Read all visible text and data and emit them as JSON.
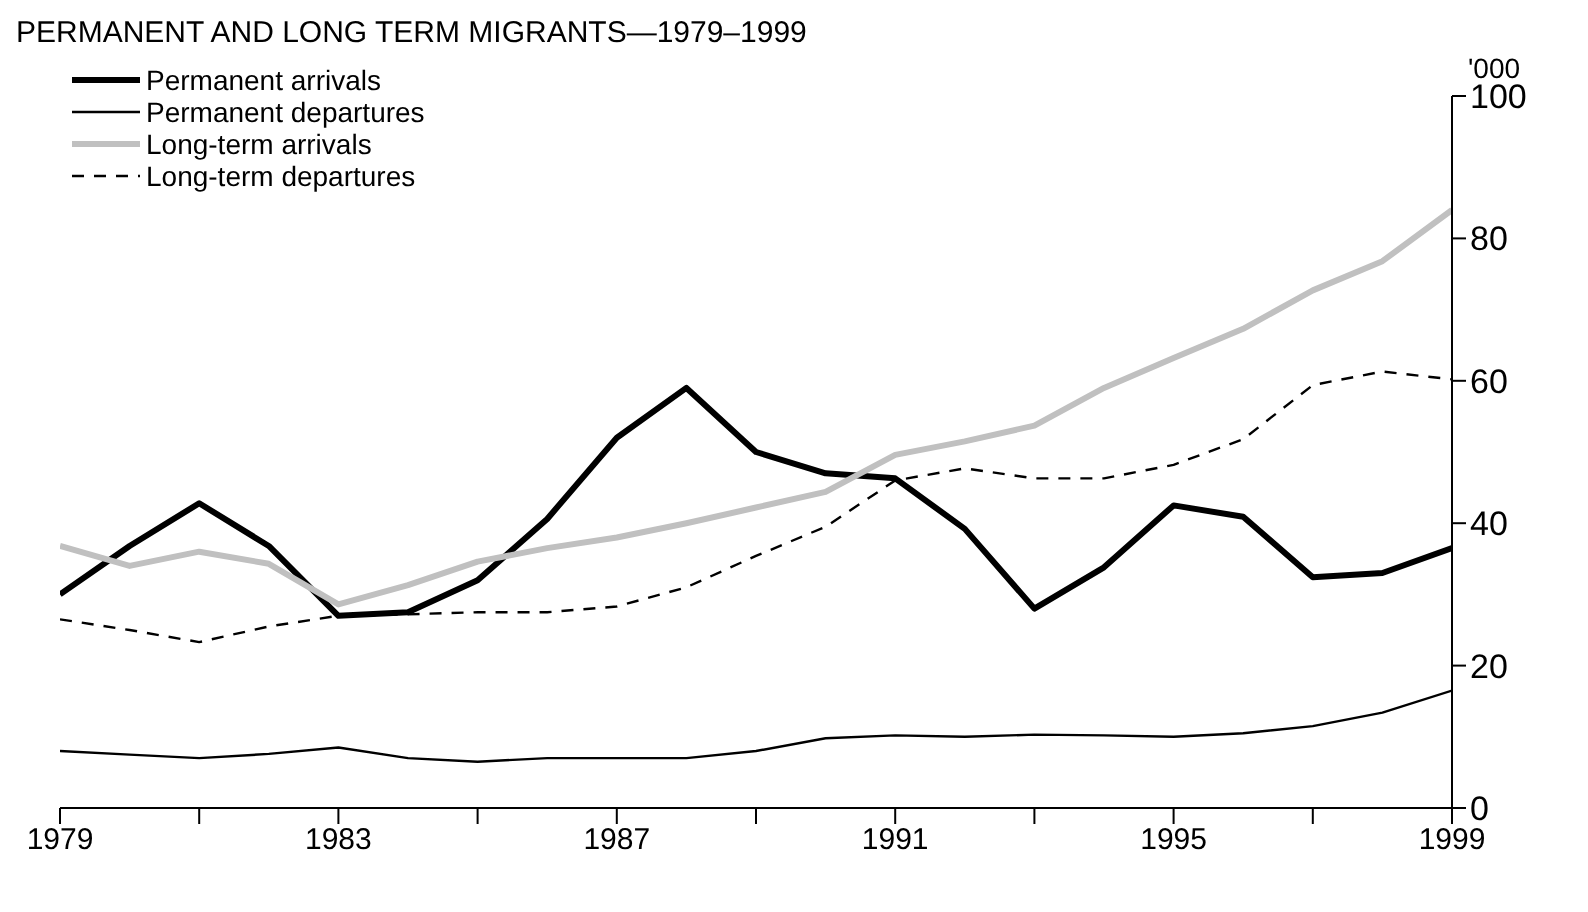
{
  "chart_data": {
    "type": "line",
    "title": "PERMANENT AND LONG TERM MIGRANTS—1979–1999",
    "ylabel": "'000",
    "x": [
      1979,
      1980,
      1981,
      1982,
      1983,
      1984,
      1985,
      1986,
      1987,
      1988,
      1989,
      1990,
      1991,
      1992,
      1993,
      1994,
      1995,
      1996,
      1997,
      1998,
      1999
    ],
    "series": [
      {
        "name": "Permanent arrivals",
        "color": "#000000",
        "line_style": "solid",
        "values": [
          30,
          36.8,
          42.8,
          36.8,
          27,
          27.5,
          32,
          40.6,
          52,
          59,
          50,
          47,
          46.3,
          39.2,
          28,
          33.8,
          42.5,
          40.9,
          32.4,
          33,
          36.5
        ]
      },
      {
        "name": "Permanent departures",
        "color": "#000000",
        "line_style": "solid",
        "values": [
          8,
          7.5,
          7,
          7.6,
          8.5,
          7,
          6.5,
          7,
          7,
          7,
          8,
          9.8,
          10.2,
          10,
          10.3,
          10.2,
          10,
          10.5,
          11.5,
          13.4,
          16.5
        ]
      },
      {
        "name": "Long-term arrivals",
        "color": "#c0c0c0",
        "line_style": "solid",
        "values": [
          36.8,
          34,
          36,
          34.3,
          28.6,
          31.3,
          34.6,
          36.5,
          38,
          40,
          42.2,
          44.4,
          49.6,
          51.5,
          53.7,
          59,
          63.2,
          67.3,
          72.7,
          76.8,
          84
        ]
      },
      {
        "name": "Long-term departures",
        "color": "#000000",
        "line_style": "dashed",
        "values": [
          26.5,
          25,
          23.3,
          25.5,
          27,
          27.2,
          27.5,
          27.5,
          28.3,
          31,
          35.4,
          39.5,
          46,
          47.7,
          46.3,
          46.3,
          48.2,
          51.8,
          59.4,
          61.3,
          60.2
        ]
      }
    ],
    "xlim": [
      1979,
      1999
    ],
    "xticks": [
      1979,
      {
        "value": 1981,
        "label": null
      },
      1983,
      {
        "value": 1985,
        "label": null
      },
      1987,
      {
        "value": 1989,
        "label": null
      },
      1991,
      {
        "value": 1993,
        "label": null
      },
      1995,
      {
        "value": 1997,
        "label": null
      },
      1999
    ],
    "ylim": [
      0,
      100
    ],
    "yticks": [
      0,
      20,
      40,
      60,
      80,
      100
    ],
    "grid": false,
    "legend": "top left",
    "marker": "none"
  }
}
